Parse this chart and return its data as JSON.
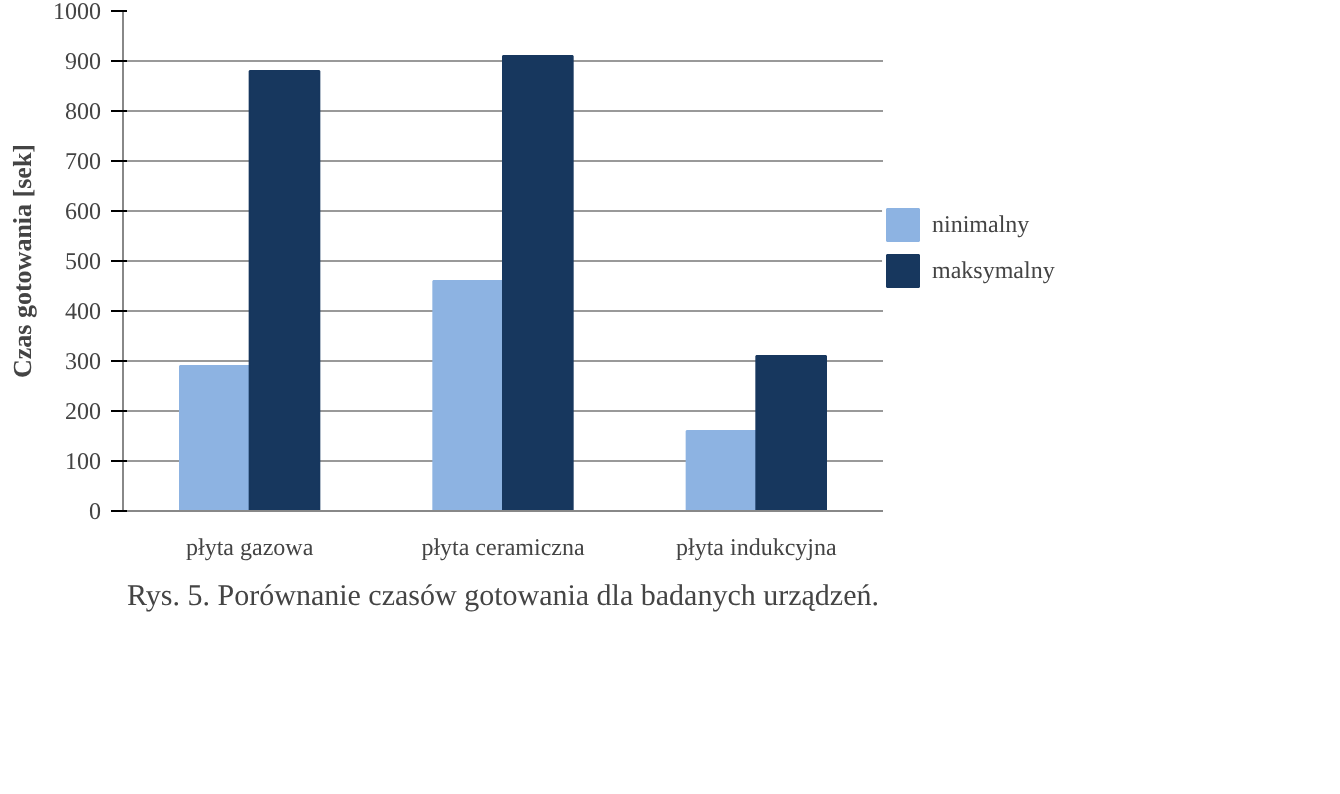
{
  "chart_data": {
    "type": "bar",
    "ylabel": "Czas gotowania [sek]",
    "categories": [
      "płyta gazowa",
      "płyta ceramiczna",
      "płyta indukcyjna"
    ],
    "series": [
      {
        "name": "ninimalny",
        "color": "#8db3e2",
        "values": [
          290,
          460,
          160
        ]
      },
      {
        "name": "maksymalny",
        "color": "#17375e",
        "values": [
          880,
          910,
          310
        ]
      }
    ],
    "ylim": [
      0,
      1000
    ],
    "yticks": [
      0,
      100,
      200,
      300,
      400,
      500,
      600,
      700,
      800,
      900,
      1000
    ],
    "grid": "y",
    "legend": "right",
    "annotations": [
      "Rys. 5. Porównanie czasów gotowania dla badanych urządzeń."
    ]
  }
}
